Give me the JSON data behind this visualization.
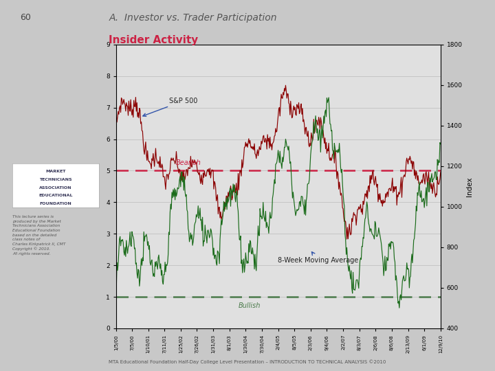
{
  "title_page_num": "60",
  "title_main": "A.  Investor vs. Trader Participation",
  "title_chart": "Insider Activity",
  "background_page": "#c8c8c8",
  "background_chart": "#e0e0e0",
  "right_ylabel": "Index",
  "bearish_level": 5.0,
  "bullish_level": 1.0,
  "bearish_label": "Bearish",
  "bullish_label": "Bullish",
  "sp500_label": "S&P 500",
  "ma_label": "8-Week Moving Average",
  "left_ylim": [
    0.0,
    9.0
  ],
  "right_ylim": [
    400,
    1800
  ],
  "left_yticks": [
    0.0,
    1.0,
    2.0,
    3.0,
    4.0,
    5.0,
    6.0,
    7.0,
    8.0,
    9.0
  ],
  "right_yticks": [
    400,
    600,
    800,
    1000,
    1200,
    1400,
    1600,
    1800
  ],
  "x_labels": [
    "1/5/00",
    "7/5/00",
    "1/10/01",
    "7/11/01",
    "1/25/02",
    "7/26/02",
    "1/31/03",
    "8/1/03",
    "1/30/04",
    "7/30/04",
    "2/4/05",
    "8/5/05",
    "2/3/06",
    "9/4/06",
    "2/2/07",
    "8/3/07",
    "2/6/08",
    "8/6/08",
    "2/13/09",
    "6/1/09",
    "12/9/10"
  ],
  "color_insider": "#8B0000",
  "color_ma": "#1a6b1a",
  "color_bearish_line": "#cc2244",
  "color_bullish_line": "#4a7a4a",
  "annotation_color": "#3355aa",
  "footer_text": "MTA Educational Foundation Half-Day College Level Presentation – INTRODUCTION TO TECHNICAL ANALYSIS ©2010",
  "logo_box_color": "#ffffff",
  "logo_text_lines": [
    "MARKET",
    "TECHNICIANS",
    "ASSOCIATION",
    "EDUCATIONAL",
    "FOUNDATION"
  ],
  "sidebar_text": "This lecture series is\nproduced by the Market\nTechnicians Association\nEducational Foundation\nbased on the detailed\nclass notes of\nCharles Kirkpatrick II, CMT\nCopyright © 2010.\nAll rights reserved."
}
